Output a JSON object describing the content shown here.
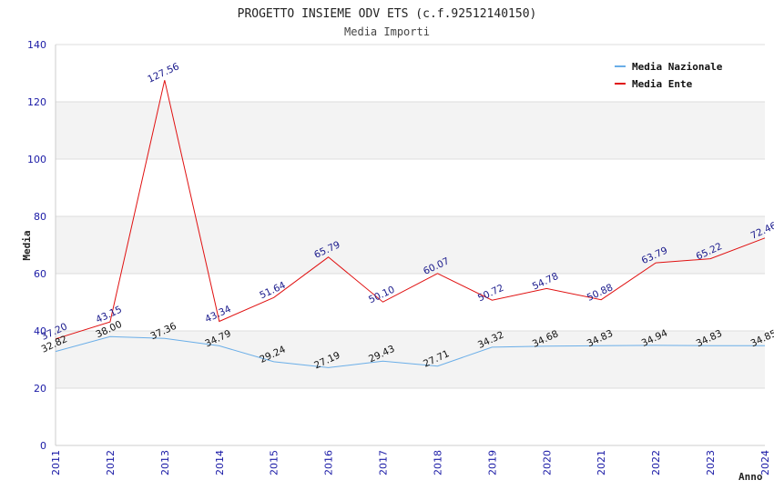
{
  "chart_data": {
    "type": "line",
    "title": "PROGETTO INSIEME ODV ETS (c.f.92512140150)",
    "subtitle": "Media Importi",
    "xlabel": "Anno",
    "ylabel": "Media",
    "ylim": [
      0,
      140
    ],
    "yticks": [
      0,
      20,
      40,
      60,
      80,
      100,
      120,
      140
    ],
    "categories": [
      "2011",
      "2012",
      "2013",
      "2014",
      "2015",
      "2016",
      "2017",
      "2018",
      "2019",
      "2020",
      "2021",
      "2022",
      "2023",
      "2024"
    ],
    "series": [
      {
        "name": "Media Nazionale",
        "color": "#6aaee8",
        "label_color": "#111111",
        "values": [
          32.82,
          38.0,
          37.36,
          34.79,
          29.24,
          27.19,
          29.43,
          27.71,
          34.32,
          34.68,
          34.83,
          34.94,
          34.83,
          34.85
        ],
        "labels": [
          "32.82",
          "38.00",
          "37.36",
          "34.79",
          "29.24",
          "27.19",
          "29.43",
          "27.71",
          "34.32",
          "34.68",
          "34.83",
          "34.94",
          "34.83",
          "34.85"
        ]
      },
      {
        "name": "Media Ente",
        "color": "#e01010",
        "label_color": "#1a1a8c",
        "values": [
          37.2,
          43.15,
          127.56,
          43.34,
          51.64,
          65.79,
          50.1,
          60.07,
          50.72,
          54.78,
          50.88,
          63.79,
          65.22,
          72.46
        ],
        "labels": [
          "37.20",
          "43.15",
          "127.56",
          "43.34",
          "51.64",
          "65.79",
          "50.10",
          "60.07",
          "50.72",
          "54.78",
          "50.88",
          "63.79",
          "65.22",
          "72.46"
        ]
      }
    ],
    "grid": true,
    "legend_position": "top-right"
  }
}
